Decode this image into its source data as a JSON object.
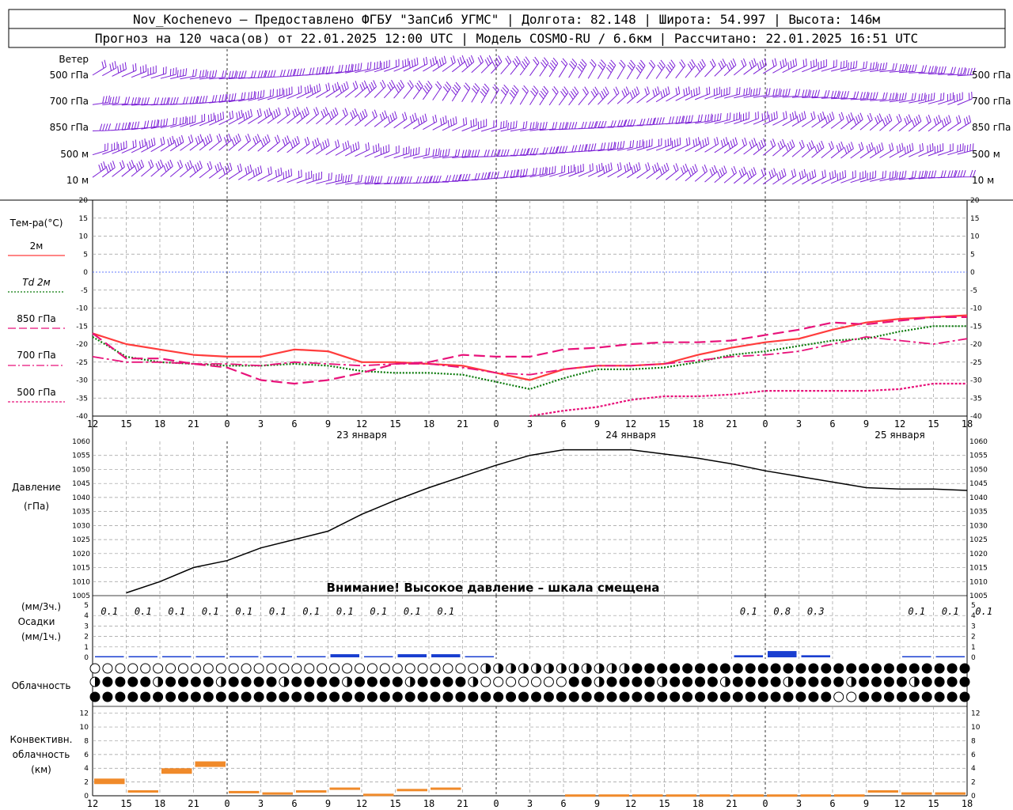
{
  "header": {
    "line1": "Nov_Kochenevo – Предоставлено ФГБУ \"ЗапСиб УГМС\" | Долгота: 82.148 | Широта: 54.997 | Высота: 146м",
    "line2": "Прогноз на 120 часа(ов) от 22.01.2025 12:00 UTC  | Модель COSMO-RU / 6.6км | Рассчитано: 22.01.2025 16:51 UTC"
  },
  "time_axis": {
    "hour_labels": [
      "12",
      "15",
      "18",
      "21",
      "0",
      "3",
      "6",
      "9",
      "12",
      "15",
      "18",
      "21",
      "0",
      "3",
      "6",
      "9",
      "12",
      "15",
      "18",
      "21",
      "0",
      "3",
      "6",
      "9",
      "12",
      "15",
      "18"
    ],
    "day_labels": [
      "23 января",
      "24 января",
      "25 января"
    ]
  },
  "wind": {
    "title": "Ветер",
    "levels": [
      "500 гПа",
      "700 гПа",
      "850 гПа",
      "500 м",
      "10  м"
    ]
  },
  "temperature": {
    "title": "Тем-ра(°C)",
    "legend": [
      {
        "label": "2м",
        "color": "#ff3c3c",
        "style": "solid"
      },
      {
        "label": "Td  2м",
        "color": "#0a7a0a",
        "style": "dotted"
      },
      {
        "label": "850 гПа",
        "color": "#e8127a",
        "style": "longdash"
      },
      {
        "label": "700 гПа",
        "color": "#e8127a",
        "style": "dashdot"
      },
      {
        "label": "500 гПа",
        "color": "#e8127a",
        "style": "dotted"
      }
    ],
    "y_ticks": [
      "20",
      "15",
      "10",
      "5",
      "0",
      "-5",
      "-10",
      "-15",
      "-20",
      "-25",
      "-30",
      "-35",
      "-40"
    ]
  },
  "pressure": {
    "title": "Давление",
    "unit": "(гПа)",
    "warning": "Внимание! Высокое давление – шкала смещена",
    "y_ticks": [
      "1060",
      "1055",
      "1050",
      "1045",
      "1040",
      "1035",
      "1030",
      "1025",
      "1020",
      "1015",
      "1010",
      "1005"
    ]
  },
  "precip": {
    "unit1": "(мм/3ч.)",
    "title": "Осадки",
    "unit2": "(мм/1ч.)",
    "y_ticks": [
      "5",
      "4",
      "3",
      "2",
      "1",
      "0"
    ],
    "labels": [
      "0.1",
      "0.1",
      "0.1",
      "0.1",
      "0.1",
      "0.1",
      "0.1",
      "0.1",
      "0.1",
      "0.1",
      "0.1",
      "0.1",
      "0.8",
      "0.3",
      "0.1",
      "0.1",
      "0.1"
    ]
  },
  "clouds": {
    "title": "Облачность"
  },
  "convective": {
    "title1": "Конвективн.",
    "title2": "облачность",
    "unit": "(км)",
    "y_ticks": [
      "12",
      "10",
      "8",
      "6",
      "4",
      "2",
      "0"
    ]
  },
  "colors": {
    "wind": "#7b1fd6",
    "t2m": "#ff3c3c",
    "td2m": "#0a7a0a",
    "upper": "#e8127a",
    "zero_line": "#3050ff",
    "precip": "#1a3fd0",
    "convective": "#f08a2a",
    "pressure": "#000000"
  },
  "chart_data": [
    {
      "type": "line",
      "title": "Тем-ра(°C)",
      "x": [
        "12",
        "15",
        "18",
        "21",
        "0",
        "3",
        "6",
        "9",
        "12",
        "15",
        "18",
        "21",
        "0",
        "3",
        "6",
        "9",
        "12",
        "15",
        "18",
        "21",
        "0",
        "3",
        "6",
        "9",
        "12",
        "15",
        "18"
      ],
      "ylim": [
        -40,
        20
      ],
      "series": [
        {
          "name": "2м",
          "values": [
            -17,
            -20,
            -21.5,
            -23,
            -23.5,
            -23.5,
            -21.5,
            -22,
            -25,
            -25,
            -25.5,
            -26,
            -28,
            -30,
            -27,
            -26,
            -26,
            -25.5,
            -23,
            -21,
            -19.5,
            -18.5,
            -16,
            -14,
            -13,
            -12.5,
            -12
          ]
        },
        {
          "name": "Td  2м",
          "values": [
            -18,
            -23.5,
            -25,
            -25.5,
            -26,
            -26,
            -25.5,
            -26,
            -27.5,
            -28,
            -28,
            -28.5,
            -30.5,
            -32.5,
            -29.5,
            -27,
            -27,
            -26.5,
            -25,
            -23,
            -22,
            -20.5,
            -19,
            -18.5,
            -16.5,
            -15,
            -15
          ]
        },
        {
          "name": "850 гПа",
          "values": [
            -17,
            -24,
            -24,
            -25.5,
            -26.5,
            -30,
            -31,
            -30,
            -28,
            -25.5,
            -25,
            -23,
            -23.5,
            -23.5,
            -21.5,
            -21,
            -20,
            -19.5,
            -19.5,
            -19,
            -17.5,
            -16,
            -14,
            -14.5,
            -13.5,
            -12.5,
            -12.5
          ]
        },
        {
          "name": "700 гПа",
          "values": [
            -23.5,
            -25,
            -25,
            -25.5,
            -25.5,
            -26,
            -25,
            -25.5,
            -26,
            -25.5,
            -25.5,
            -26.5,
            -28,
            -28.5,
            -27,
            -26,
            -26,
            -25.5,
            -24.5,
            -23.5,
            -23,
            -22,
            -20,
            -18,
            -19,
            -20,
            -18.5
          ]
        },
        {
          "name": "500 гПа",
          "values": [
            null,
            null,
            null,
            null,
            null,
            null,
            null,
            null,
            null,
            null,
            null,
            null,
            null,
            -40.5,
            -38.5,
            -37.5,
            -35.5,
            -34.5,
            -34.5,
            -34,
            -33,
            -33,
            -33,
            -33,
            -32.5,
            -31,
            -31
          ]
        }
      ]
    },
    {
      "type": "line",
      "title": "Давление",
      "x": [
        "12",
        "15",
        "18",
        "21",
        "0",
        "3",
        "6",
        "9",
        "12",
        "15",
        "18",
        "21",
        "0",
        "3",
        "6",
        "9",
        "12",
        "15",
        "18",
        "21",
        "0",
        "3",
        "6",
        "9",
        "12",
        "15",
        "18"
      ],
      "ylim": [
        1005,
        1060
      ],
      "series": [
        {
          "name": "Давление",
          "values": [
            1004,
            1006,
            1010,
            1015,
            1017.5,
            1022,
            1025,
            1028,
            1034,
            1039,
            1043.5,
            1047.5,
            1051.5,
            1055,
            1057,
            1057,
            1057,
            1055.5,
            1054,
            1052,
            1049.5,
            1047.5,
            1045.5,
            1043.5,
            1043,
            1043,
            1042.5
          ]
        }
      ]
    },
    {
      "type": "bar",
      "title": "Осадки",
      "x": [
        "12",
        "15",
        "18",
        "21",
        "0",
        "3",
        "6",
        "9",
        "12",
        "15",
        "18",
        "21",
        "0",
        "3",
        "6",
        "9",
        "12",
        "15",
        "18",
        "21",
        "0",
        "3",
        "6",
        "9",
        "12",
        "15",
        "18"
      ],
      "ylim": [
        0,
        5
      ],
      "series": [
        {
          "name": "Осадки",
          "values": [
            0.05,
            0.05,
            0.05,
            0.05,
            0.05,
            0.05,
            0.05,
            0.15,
            0.05,
            0.15,
            0.15,
            0.05,
            0,
            0,
            0,
            0,
            0,
            0,
            0,
            0.1,
            0.3,
            0.1,
            0,
            0,
            0.05,
            0.05,
            0.05
          ]
        }
      ]
    },
    {
      "type": "bar",
      "title": "Конвективн. облачность",
      "x": [
        "12",
        "15",
        "18",
        "21",
        "0",
        "3",
        "6",
        "9",
        "12",
        "15",
        "18",
        "21",
        "0",
        "3",
        "6",
        "9",
        "12",
        "15",
        "18",
        "21",
        "0",
        "3",
        "6",
        "9",
        "12",
        "15",
        "18"
      ],
      "ylim": [
        0,
        12
      ],
      "series": [
        {
          "name": "Конвективн. облачность",
          "values": [
            2.5,
            0.8,
            4,
            5,
            0.7,
            0.5,
            0.8,
            1.2,
            0.3,
            1,
            1.2,
            0,
            0,
            0,
            0.2,
            0.2,
            0.2,
            0.2,
            0.2,
            0.2,
            0.2,
            0.2,
            0.2,
            0.8,
            0.5,
            0.5,
            0.8
          ]
        }
      ]
    }
  ]
}
